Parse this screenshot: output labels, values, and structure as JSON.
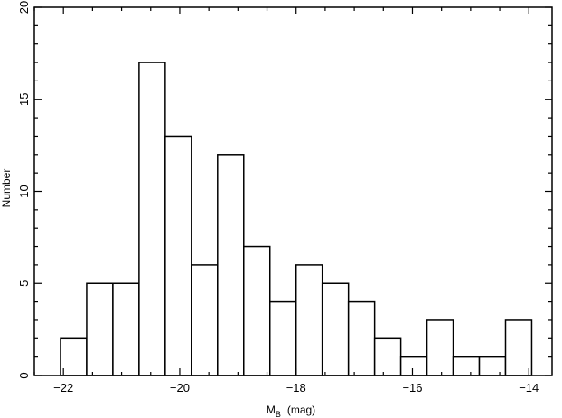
{
  "chart_data": {
    "type": "bar",
    "subtype": "histogram",
    "xlabel": "M",
    "xlabel_subscript": "B",
    "xlabel_unit": "(mag)",
    "ylabel": "Number",
    "xlim": [
      -22.5,
      -13.6
    ],
    "ylim": [
      0,
      20
    ],
    "xticks": [
      -22,
      -20,
      -18,
      -16,
      -14
    ],
    "xtick_labels": [
      "−22",
      "−20",
      "−18",
      "−16",
      "−14"
    ],
    "yticks": [
      0,
      5,
      10,
      15,
      20
    ],
    "ytick_labels": [
      "0",
      "5",
      "10",
      "15",
      "20"
    ],
    "bin_width": 0.45,
    "bins": [
      {
        "x0": -22.05,
        "x1": -21.6,
        "value": 2
      },
      {
        "x0": -21.6,
        "x1": -21.15,
        "value": 5
      },
      {
        "x0": -21.15,
        "x1": -20.7,
        "value": 5
      },
      {
        "x0": -20.7,
        "x1": -20.25,
        "value": 17
      },
      {
        "x0": -20.25,
        "x1": -19.8,
        "value": 13
      },
      {
        "x0": -19.8,
        "x1": -19.35,
        "value": 6
      },
      {
        "x0": -19.35,
        "x1": -18.9,
        "value": 12
      },
      {
        "x0": -18.9,
        "x1": -18.45,
        "value": 7
      },
      {
        "x0": -18.45,
        "x1": -18.0,
        "value": 4
      },
      {
        "x0": -18.0,
        "x1": -17.55,
        "value": 6
      },
      {
        "x0": -17.55,
        "x1": -17.1,
        "value": 5
      },
      {
        "x0": -17.1,
        "x1": -16.65,
        "value": 4
      },
      {
        "x0": -16.65,
        "x1": -16.2,
        "value": 2
      },
      {
        "x0": -16.2,
        "x1": -15.75,
        "value": 1
      },
      {
        "x0": -15.75,
        "x1": -15.3,
        "value": 3
      },
      {
        "x0": -15.3,
        "x1": -14.85,
        "value": 1
      },
      {
        "x0": -14.85,
        "x1": -14.4,
        "value": 1
      },
      {
        "x0": -14.4,
        "x1": -13.95,
        "value": 3
      }
    ],
    "grid": false,
    "legend": "none",
    "colors": {
      "bar_fill": "#ffffff",
      "bar_stroke": "#000000",
      "axis": "#000000"
    }
  }
}
